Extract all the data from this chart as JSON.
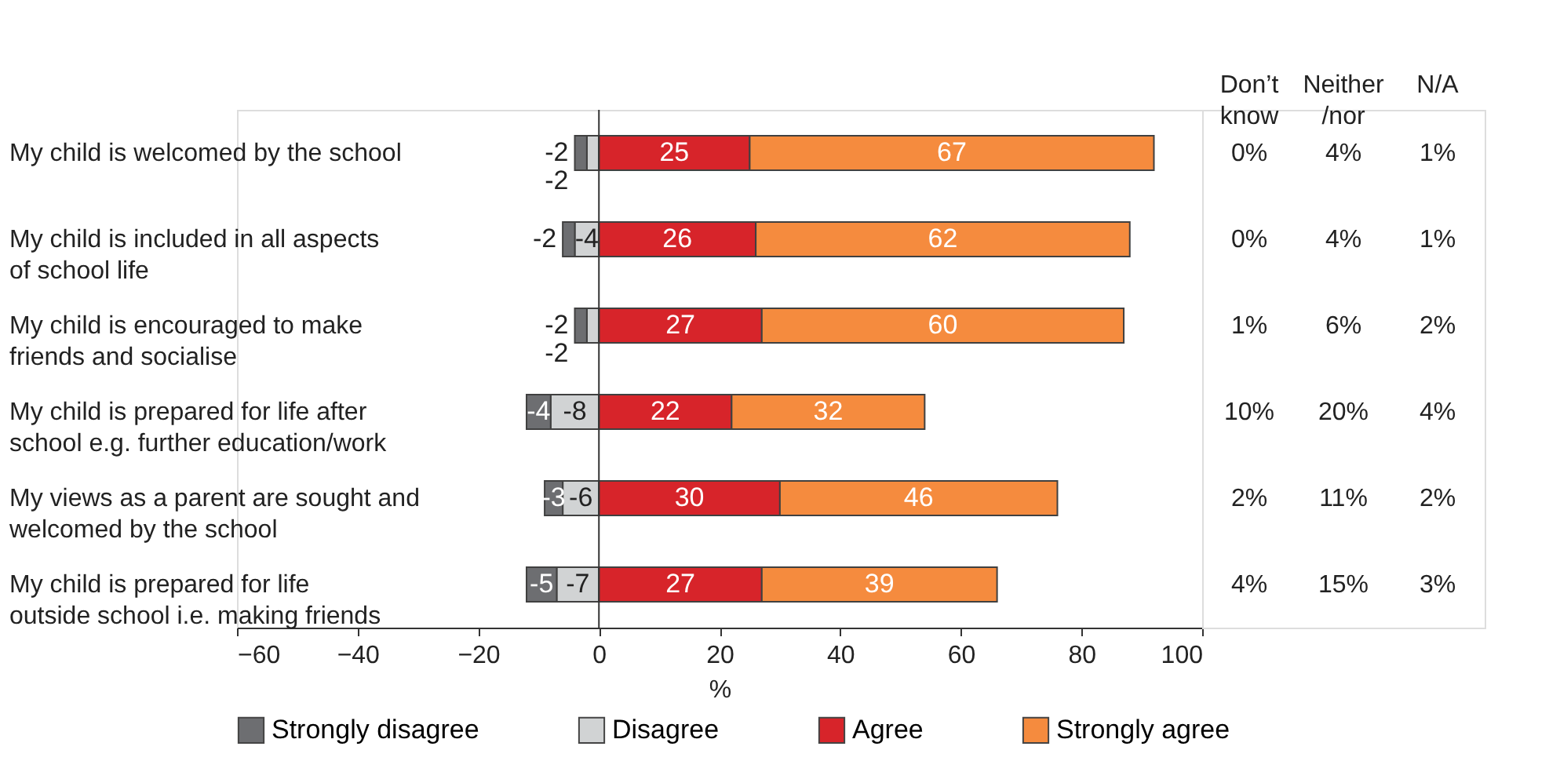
{
  "chart_data": [
    {
      "type": "bar",
      "orientation": "horizontal",
      "stacked": true,
      "data_labels": true,
      "legend": "bottom",
      "xlabel": "%",
      "categories": [
        "My child is welcomed by the school",
        "My child is included in all aspects of school life",
        "My child is encouraged to make friends and socialise",
        "My child is prepared for life after school e.g. further education/work",
        "My views as a parent are sought and welcomed by the school",
        "My child is prepared for life outside school i.e. making friends"
      ],
      "xlim": [
        -60,
        100
      ],
      "xticks": [
        -60,
        -40,
        -20,
        0,
        20,
        40,
        60,
        80,
        100
      ],
      "series": [
        {
          "name": "Disagree",
          "color": "#d1d3d4",
          "values": [
            -2,
            -4,
            -2,
            -8,
            -6,
            -7
          ]
        },
        {
          "name": "Strongly disagree",
          "color": "#6d6e71",
          "values": [
            -2,
            -2,
            -2,
            -4,
            -3,
            -5
          ]
        },
        {
          "name": "Agree",
          "color": "#d7242a",
          "values": [
            25,
            26,
            27,
            22,
            30,
            27
          ]
        },
        {
          "name": "Strongly agree",
          "color": "#f58b3e",
          "values": [
            67,
            62,
            60,
            32,
            46,
            39
          ]
        }
      ]
    },
    {
      "type": "other",
      "categories": [
        "Don’t know",
        "Neither /nor",
        "N/A"
      ],
      "cell_labels": [
        [
          "0%",
          "4%",
          "1%"
        ],
        [
          "0%",
          "4%",
          "1%"
        ],
        [
          "1%",
          "6%",
          "2%"
        ],
        [
          "10%",
          "20%",
          "4%"
        ],
        [
          "2%",
          "11%",
          "2%"
        ],
        [
          "4%",
          "15%",
          "3%"
        ]
      ]
    }
  ]
}
